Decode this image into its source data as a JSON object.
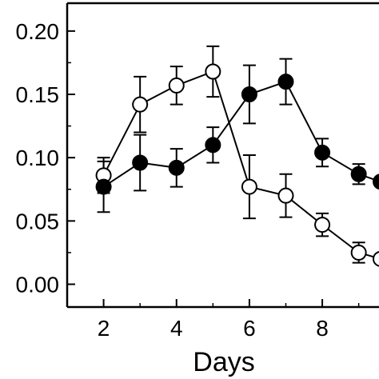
{
  "chart_data": {
    "type": "line",
    "xlabel": "Days",
    "ylabel": "",
    "xlim": [
      1,
      9.6
    ],
    "ylim": [
      -0.018,
      0.222
    ],
    "x_ticks": [
      2,
      4,
      6,
      8
    ],
    "x_tick_labels": [
      "2",
      "4",
      "6",
      "8"
    ],
    "y_ticks": [
      0.0,
      0.05,
      0.1,
      0.15,
      0.2
    ],
    "y_tick_labels": [
      "0.00",
      "0.05",
      "0.10",
      "0.15",
      "0.20"
    ],
    "series": [
      {
        "marker": "open-circle",
        "x": [
          2,
          3,
          4,
          5,
          6,
          7,
          8,
          9,
          9.6
        ],
        "y": [
          0.086,
          0.142,
          0.157,
          0.168,
          0.077,
          0.07,
          0.047,
          0.025,
          0.02
        ],
        "error": [
          0.014,
          0.022,
          0.015,
          0.02,
          0.025,
          0.017,
          0.009,
          0.008,
          null
        ]
      },
      {
        "marker": "filled-circle",
        "x": [
          2,
          3,
          4,
          5,
          6,
          7,
          8,
          9,
          9.6
        ],
        "y": [
          0.077,
          0.096,
          0.092,
          0.11,
          0.15,
          0.16,
          0.104,
          0.087,
          0.081
        ],
        "error": [
          0.02,
          0.022,
          0.015,
          0.014,
          0.023,
          0.018,
          0.011,
          0.008,
          null
        ]
      }
    ]
  }
}
